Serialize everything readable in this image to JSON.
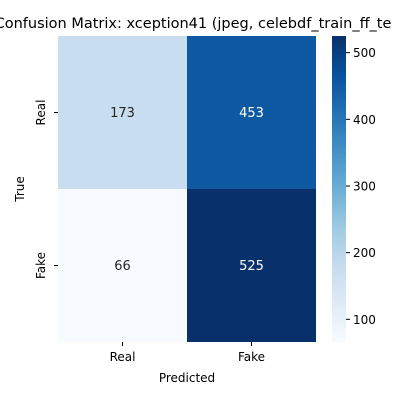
{
  "chart_data": {
    "type": "heatmap",
    "title": "Confusion Matrix: xception41 (jpeg, celebdf_train_ff_te",
    "xlabel": "Predicted",
    "ylabel": "True",
    "x_categories": [
      "Real",
      "Fake"
    ],
    "y_categories": [
      "Real",
      "Fake"
    ],
    "values": [
      [
        173,
        453
      ],
      [
        66,
        525
      ]
    ],
    "colormap": "Blues",
    "colorbar": {
      "range": [
        66,
        525
      ],
      "ticks": [
        100,
        200,
        300,
        400,
        500
      ]
    }
  }
}
